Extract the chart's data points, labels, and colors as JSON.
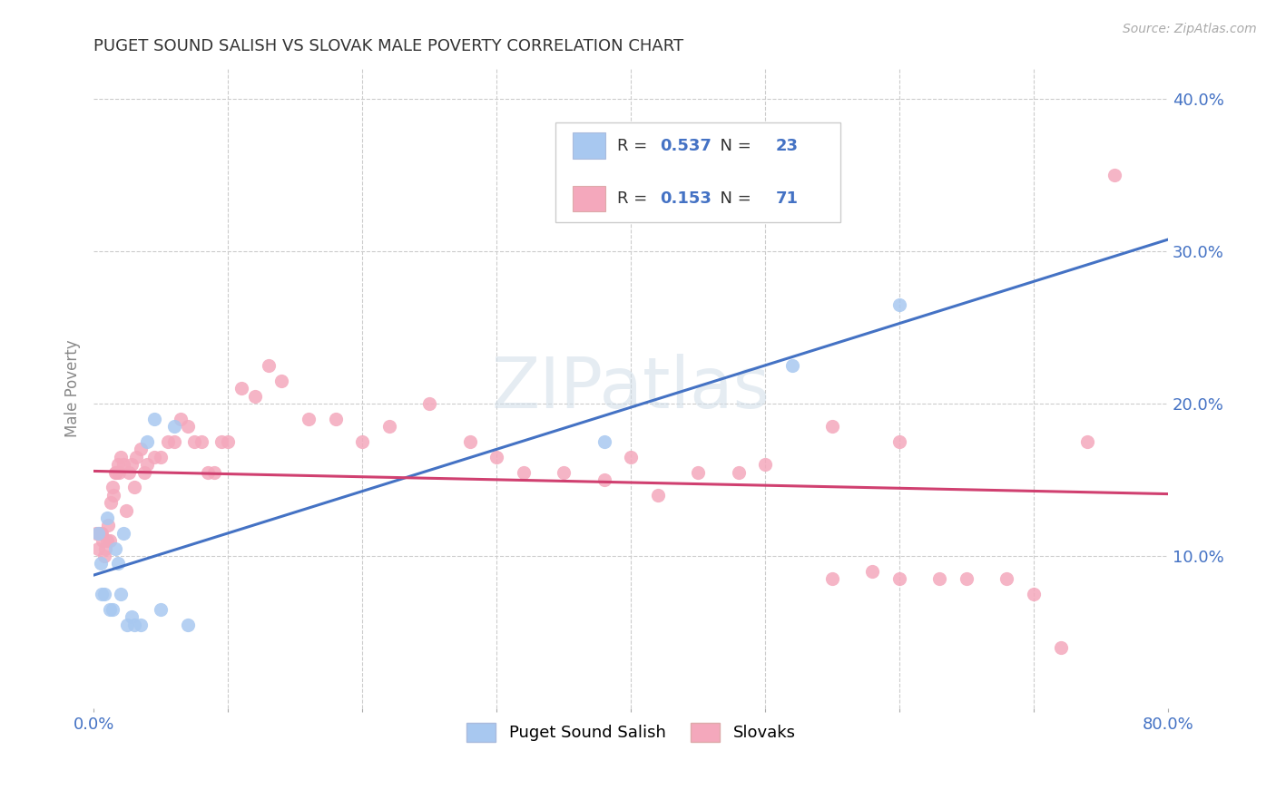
{
  "title": "PUGET SOUND SALISH VS SLOVAK MALE POVERTY CORRELATION CHART",
  "source": "Source: ZipAtlas.com",
  "ylabel": "Male Poverty",
  "xlim": [
    0.0,
    0.8
  ],
  "ylim": [
    0.0,
    0.42
  ],
  "background_color": "#ffffff",
  "grid_color": "#cccccc",
  "watermark": "ZIPatlas",
  "series1_label": "Puget Sound Salish",
  "series1_color": "#a8c8f0",
  "series1_line_color": "#4472c4",
  "series1_R": 0.537,
  "series1_N": 23,
  "series2_label": "Slovaks",
  "series2_color": "#f4a8bc",
  "series2_line_color": "#d04070",
  "series2_R": 0.153,
  "series2_N": 71,
  "legend_R_color": "#4472c4",
  "legend_text_color": "#333333",
  "series1_x": [
    0.003,
    0.005,
    0.006,
    0.008,
    0.01,
    0.012,
    0.014,
    0.016,
    0.018,
    0.02,
    0.022,
    0.025,
    0.028,
    0.03,
    0.035,
    0.04,
    0.045,
    0.05,
    0.06,
    0.07,
    0.38,
    0.52,
    0.6
  ],
  "series1_y": [
    0.115,
    0.095,
    0.075,
    0.075,
    0.125,
    0.065,
    0.065,
    0.105,
    0.095,
    0.075,
    0.115,
    0.055,
    0.06,
    0.055,
    0.055,
    0.175,
    0.19,
    0.065,
    0.185,
    0.055,
    0.175,
    0.225,
    0.265
  ],
  "series2_x": [
    0.002,
    0.003,
    0.004,
    0.005,
    0.006,
    0.007,
    0.008,
    0.009,
    0.01,
    0.011,
    0.012,
    0.013,
    0.014,
    0.015,
    0.016,
    0.017,
    0.018,
    0.019,
    0.02,
    0.022,
    0.024,
    0.026,
    0.028,
    0.03,
    0.032,
    0.035,
    0.038,
    0.04,
    0.045,
    0.05,
    0.055,
    0.06,
    0.065,
    0.07,
    0.075,
    0.08,
    0.085,
    0.09,
    0.095,
    0.1,
    0.11,
    0.12,
    0.13,
    0.14,
    0.16,
    0.18,
    0.2,
    0.22,
    0.25,
    0.28,
    0.3,
    0.32,
    0.35,
    0.38,
    0.4,
    0.42,
    0.45,
    0.48,
    0.5,
    0.55,
    0.58,
    0.6,
    0.63,
    0.65,
    0.68,
    0.7,
    0.72,
    0.74,
    0.76,
    0.55,
    0.6
  ],
  "series2_y": [
    0.115,
    0.105,
    0.115,
    0.115,
    0.115,
    0.11,
    0.1,
    0.105,
    0.11,
    0.12,
    0.11,
    0.135,
    0.145,
    0.14,
    0.155,
    0.155,
    0.16,
    0.155,
    0.165,
    0.16,
    0.13,
    0.155,
    0.16,
    0.145,
    0.165,
    0.17,
    0.155,
    0.16,
    0.165,
    0.165,
    0.175,
    0.175,
    0.19,
    0.185,
    0.175,
    0.175,
    0.155,
    0.155,
    0.175,
    0.175,
    0.21,
    0.205,
    0.225,
    0.215,
    0.19,
    0.19,
    0.175,
    0.185,
    0.2,
    0.175,
    0.165,
    0.155,
    0.155,
    0.15,
    0.165,
    0.14,
    0.155,
    0.155,
    0.16,
    0.085,
    0.09,
    0.085,
    0.085,
    0.085,
    0.085,
    0.075,
    0.04,
    0.175,
    0.35,
    0.185,
    0.175
  ]
}
